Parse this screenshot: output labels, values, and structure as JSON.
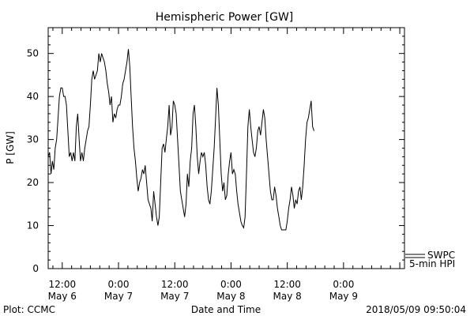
{
  "chart_data": {
    "type": "line",
    "title": "Hemispheric Power [GW]",
    "ylabel": "P [GW]",
    "xlabel": "Date and Time",
    "ylim": [
      0,
      56
    ],
    "yticks": [
      0,
      10,
      20,
      30,
      40,
      50
    ],
    "xlim_hours": [
      9,
      85
    ],
    "xticks": [
      {
        "hour": 12,
        "time": "12:00",
        "date": "May 6"
      },
      {
        "hour": 24,
        "time": "0:00",
        "date": "May 7"
      },
      {
        "hour": 36,
        "time": "12:00",
        "date": "May 7"
      },
      {
        "hour": 48,
        "time": "0:00",
        "date": "May 8"
      },
      {
        "hour": 60,
        "time": "12:00",
        "date": "May 8"
      },
      {
        "hour": 72,
        "time": "0:00",
        "date": "May 9"
      }
    ],
    "grid": false,
    "legend": {
      "position": "bottom-right-outside",
      "entries": [
        "SWPC",
        "5-min HPI"
      ]
    },
    "series": [
      {
        "name": "5-min HPI",
        "color": "#000000",
        "points": [
          [
            9.0,
            26
          ],
          [
            9.3,
            27
          ],
          [
            9.6,
            22
          ],
          [
            9.9,
            25
          ],
          [
            10.2,
            23
          ],
          [
            10.5,
            28
          ],
          [
            10.8,
            30
          ],
          [
            11.1,
            35
          ],
          [
            11.4,
            40
          ],
          [
            11.7,
            42
          ],
          [
            12.0,
            42
          ],
          [
            12.3,
            40
          ],
          [
            12.6,
            40
          ],
          [
            12.9,
            38
          ],
          [
            13.2,
            32
          ],
          [
            13.5,
            26
          ],
          [
            13.8,
            27
          ],
          [
            14.1,
            25
          ],
          [
            14.4,
            27
          ],
          [
            14.7,
            25
          ],
          [
            15.0,
            33
          ],
          [
            15.3,
            36
          ],
          [
            15.6,
            30
          ],
          [
            15.9,
            25
          ],
          [
            16.2,
            27
          ],
          [
            16.5,
            25
          ],
          [
            16.8,
            28
          ],
          [
            17.1,
            30
          ],
          [
            17.4,
            32
          ],
          [
            17.7,
            33
          ],
          [
            18.0,
            38
          ],
          [
            18.3,
            44
          ],
          [
            18.6,
            46
          ],
          [
            18.9,
            44
          ],
          [
            19.2,
            45
          ],
          [
            19.5,
            46
          ],
          [
            19.8,
            50
          ],
          [
            20.1,
            48
          ],
          [
            20.4,
            50
          ],
          [
            20.7,
            49
          ],
          [
            21.0,
            48
          ],
          [
            21.3,
            46
          ],
          [
            21.6,
            43
          ],
          [
            21.9,
            41
          ],
          [
            22.2,
            38
          ],
          [
            22.5,
            40
          ],
          [
            22.8,
            34
          ],
          [
            23.1,
            36
          ],
          [
            23.4,
            35
          ],
          [
            23.7,
            37
          ],
          [
            24.0,
            38
          ],
          [
            24.3,
            38
          ],
          [
            24.6,
            40
          ],
          [
            24.9,
            43
          ],
          [
            25.2,
            44
          ],
          [
            25.5,
            46
          ],
          [
            25.8,
            48
          ],
          [
            26.1,
            51
          ],
          [
            26.4,
            47
          ],
          [
            26.7,
            40
          ],
          [
            27.0,
            33
          ],
          [
            27.3,
            28
          ],
          [
            27.6,
            25
          ],
          [
            27.9,
            21
          ],
          [
            28.2,
            18
          ],
          [
            28.5,
            20
          ],
          [
            28.8,
            21
          ],
          [
            29.1,
            23
          ],
          [
            29.4,
            22
          ],
          [
            29.7,
            24
          ],
          [
            30.0,
            20
          ],
          [
            30.3,
            16
          ],
          [
            30.6,
            15
          ],
          [
            30.9,
            14
          ],
          [
            31.2,
            11
          ],
          [
            31.5,
            18
          ],
          [
            31.8,
            15
          ],
          [
            32.1,
            12
          ],
          [
            32.4,
            10
          ],
          [
            32.7,
            12
          ],
          [
            33.0,
            20
          ],
          [
            33.3,
            28
          ],
          [
            33.6,
            29
          ],
          [
            33.9,
            27
          ],
          [
            34.2,
            30
          ],
          [
            34.5,
            33
          ],
          [
            34.8,
            38
          ],
          [
            35.1,
            31
          ],
          [
            35.4,
            33
          ],
          [
            35.7,
            39
          ],
          [
            36.0,
            38
          ],
          [
            36.3,
            36
          ],
          [
            36.6,
            30
          ],
          [
            36.9,
            24
          ],
          [
            37.2,
            18
          ],
          [
            37.5,
            16
          ],
          [
            37.8,
            14
          ],
          [
            38.1,
            12
          ],
          [
            38.4,
            15
          ],
          [
            38.7,
            22
          ],
          [
            39.0,
            19
          ],
          [
            39.3,
            25
          ],
          [
            39.6,
            28
          ],
          [
            39.9,
            36
          ],
          [
            40.2,
            38
          ],
          [
            40.5,
            33
          ],
          [
            40.8,
            26
          ],
          [
            41.1,
            22
          ],
          [
            41.4,
            25
          ],
          [
            41.7,
            27
          ],
          [
            42.0,
            26
          ],
          [
            42.3,
            27
          ],
          [
            42.6,
            24
          ],
          [
            42.9,
            19
          ],
          [
            43.2,
            16
          ],
          [
            43.5,
            15
          ],
          [
            43.8,
            18
          ],
          [
            44.1,
            23
          ],
          [
            44.4,
            28
          ],
          [
            44.7,
            35
          ],
          [
            45.0,
            42
          ],
          [
            45.3,
            38
          ],
          [
            45.6,
            30
          ],
          [
            45.9,
            22
          ],
          [
            46.2,
            18
          ],
          [
            46.5,
            20
          ],
          [
            46.8,
            16
          ],
          [
            47.1,
            17
          ],
          [
            47.4,
            22
          ],
          [
            47.7,
            25
          ],
          [
            48.0,
            27
          ],
          [
            48.3,
            22
          ],
          [
            48.6,
            23
          ],
          [
            48.9,
            22
          ],
          [
            49.2,
            18
          ],
          [
            49.5,
            15
          ],
          [
            49.8,
            13
          ],
          [
            50.1,
            11
          ],
          [
            50.4,
            10
          ],
          [
            50.7,
            9.5
          ],
          [
            51.0,
            12
          ],
          [
            51.3,
            22
          ],
          [
            51.6,
            33
          ],
          [
            51.9,
            37
          ],
          [
            52.2,
            33
          ],
          [
            52.5,
            30
          ],
          [
            52.8,
            27
          ],
          [
            53.1,
            26
          ],
          [
            53.4,
            28
          ],
          [
            53.7,
            32
          ],
          [
            54.0,
            33
          ],
          [
            54.3,
            31
          ],
          [
            54.6,
            34
          ],
          [
            54.9,
            37
          ],
          [
            55.2,
            35
          ],
          [
            55.5,
            30
          ],
          [
            55.8,
            26
          ],
          [
            56.1,
            22
          ],
          [
            56.4,
            18
          ],
          [
            56.7,
            16
          ],
          [
            57.0,
            16
          ],
          [
            57.3,
            19
          ],
          [
            57.6,
            17
          ],
          [
            57.9,
            14
          ],
          [
            58.2,
            12
          ],
          [
            58.5,
            10
          ],
          [
            58.8,
            9
          ],
          [
            59.1,
            9
          ],
          [
            59.4,
            9
          ],
          [
            59.7,
            9
          ],
          [
            60.0,
            11
          ],
          [
            60.3,
            14
          ],
          [
            60.6,
            16
          ],
          [
            60.9,
            19
          ],
          [
            61.2,
            17
          ],
          [
            61.5,
            14
          ],
          [
            61.8,
            16
          ],
          [
            62.1,
            15
          ],
          [
            62.4,
            18
          ],
          [
            62.7,
            19
          ],
          [
            63.0,
            16
          ],
          [
            63.3,
            19
          ],
          [
            63.6,
            24
          ],
          [
            63.9,
            30
          ],
          [
            64.2,
            34
          ],
          [
            64.5,
            35
          ],
          [
            64.8,
            37
          ],
          [
            65.1,
            39
          ],
          [
            65.4,
            33
          ],
          [
            65.7,
            32
          ]
        ]
      }
    ]
  },
  "footer": {
    "left": "Plot: CCMC",
    "right": "2018/05/09 09:50:04"
  }
}
